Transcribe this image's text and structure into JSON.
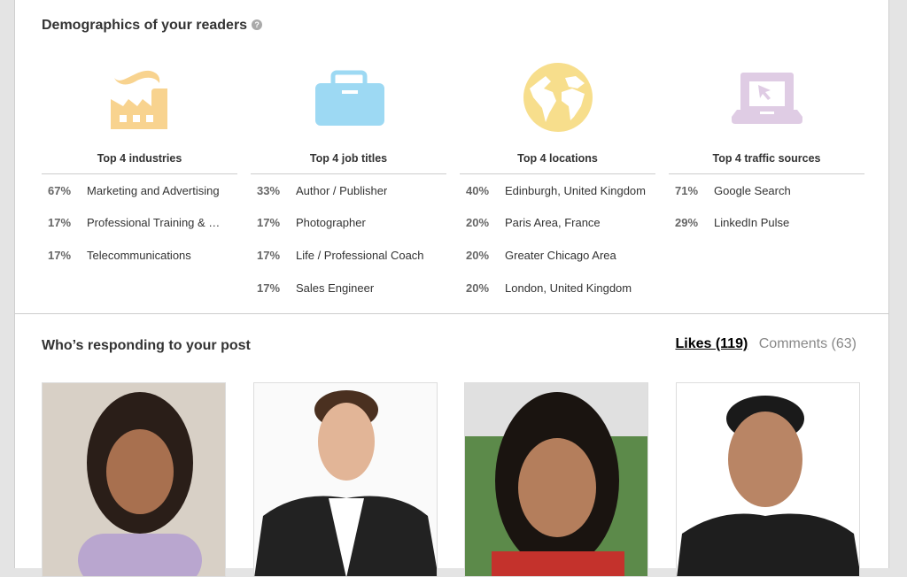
{
  "demographics": {
    "title": "Demographics of your readers",
    "help_icon": "?",
    "columns": [
      {
        "icon": "factory-icon",
        "color": "#f8d38f",
        "title": "Top 4 industries",
        "rows": [
          {
            "pct": "67%",
            "label": "Marketing and Advertising"
          },
          {
            "pct": "17%",
            "label": "Professional Training & …"
          },
          {
            "pct": "17%",
            "label": "Telecommunications"
          }
        ]
      },
      {
        "icon": "briefcase-icon",
        "color": "#9dd9f3",
        "title": "Top 4 job titles",
        "rows": [
          {
            "pct": "33%",
            "label": "Author / Publisher"
          },
          {
            "pct": "17%",
            "label": "Photographer"
          },
          {
            "pct": "17%",
            "label": "Life / Professional Coach"
          },
          {
            "pct": "17%",
            "label": "Sales Engineer"
          }
        ]
      },
      {
        "icon": "globe-icon",
        "color": "#f7de8c",
        "title": "Top 4 locations",
        "rows": [
          {
            "pct": "40%",
            "label": "Edinburgh, United Kingdom"
          },
          {
            "pct": "20%",
            "label": "Paris Area, France"
          },
          {
            "pct": "20%",
            "label": "Greater Chicago Area"
          },
          {
            "pct": "20%",
            "label": "London, United Kingdom"
          }
        ]
      },
      {
        "icon": "laptop-cursor-icon",
        "color": "#dfcce4",
        "title": "Top 4 traffic sources",
        "rows": [
          {
            "pct": "71%",
            "label": "Google Search"
          },
          {
            "pct": "29%",
            "label": "LinkedIn Pulse"
          }
        ]
      }
    ]
  },
  "responders": {
    "title": "Who’s responding to your post",
    "tabs": {
      "likes": "Likes (119)",
      "comments": "Comments (63)"
    }
  }
}
